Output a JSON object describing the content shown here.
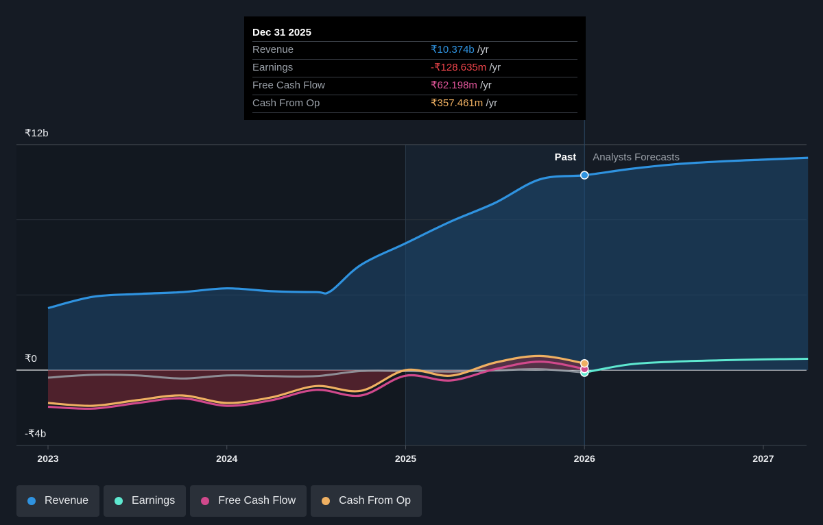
{
  "tooltip": {
    "date": "Dec 31 2025",
    "rows": [
      {
        "label": "Revenue",
        "value": "₹10.374b",
        "unit": "/yr",
        "color": "#2f93e0"
      },
      {
        "label": "Earnings",
        "value": "-₹128.635m",
        "unit": "/yr",
        "color": "#f0454b"
      },
      {
        "label": "Free Cash Flow",
        "value": "₹62.198m",
        "unit": "/yr",
        "color": "#e0559a"
      },
      {
        "label": "Cash From Op",
        "value": "₹357.461m",
        "unit": "/yr",
        "color": "#efb062"
      }
    ]
  },
  "region_labels": {
    "past": "Past",
    "forecast": "Analysts Forecasts"
  },
  "legend": [
    {
      "label": "Revenue",
      "color": "#2f93e0"
    },
    {
      "label": "Earnings",
      "color": "#5ee8d0"
    },
    {
      "label": "Free Cash Flow",
      "color": "#d1498c"
    },
    {
      "label": "Cash From Op",
      "color": "#efb062"
    }
  ],
  "chart_data": {
    "type": "line",
    "y_unit": "₹ billions",
    "y_tick_labels": [
      {
        "value": 12,
        "label": "₹12b"
      },
      {
        "value": 0,
        "label": "₹0"
      },
      {
        "value": -4,
        "label": "-₹4b"
      }
    ],
    "ylim": [
      -4,
      12
    ],
    "xlim": [
      2023,
      2027.25
    ],
    "x_ticks": [
      2023,
      2024,
      2025,
      2026,
      2027
    ],
    "past_forecast_split": 2026,
    "highlight_start": 2025,
    "grid": true,
    "series": [
      {
        "name": "Revenue",
        "color": "#2f93e0",
        "points": [
          [
            2023.0,
            3.3
          ],
          [
            2023.25,
            3.9
          ],
          [
            2023.5,
            4.05
          ],
          [
            2023.75,
            4.15
          ],
          [
            2024.0,
            4.35
          ],
          [
            2024.25,
            4.2
          ],
          [
            2024.5,
            4.15
          ],
          [
            2024.58,
            4.2
          ],
          [
            2024.75,
            5.6
          ],
          [
            2025.0,
            6.75
          ],
          [
            2025.25,
            7.9
          ],
          [
            2025.5,
            8.9
          ],
          [
            2025.75,
            10.15
          ],
          [
            2026.0,
            10.374
          ],
          [
            2026.25,
            10.7
          ],
          [
            2026.5,
            10.95
          ],
          [
            2026.75,
            11.1
          ],
          [
            2027.0,
            11.2
          ],
          [
            2027.25,
            11.3
          ]
        ]
      },
      {
        "name": "Earnings",
        "color": "#5ee8d0",
        "points": [
          [
            2023.0,
            -0.4
          ],
          [
            2023.25,
            -0.25
          ],
          [
            2023.5,
            -0.28
          ],
          [
            2023.75,
            -0.45
          ],
          [
            2024.0,
            -0.28
          ],
          [
            2024.25,
            -0.32
          ],
          [
            2024.5,
            -0.32
          ],
          [
            2024.75,
            -0.05
          ],
          [
            2025.0,
            -0.05
          ],
          [
            2025.25,
            -0.08
          ],
          [
            2025.5,
            -0.02
          ],
          [
            2025.75,
            0.05
          ],
          [
            2026.0,
            -0.129
          ],
          [
            2026.25,
            0.3
          ],
          [
            2026.5,
            0.45
          ],
          [
            2026.75,
            0.52
          ],
          [
            2027.0,
            0.57
          ],
          [
            2027.25,
            0.6
          ]
        ]
      },
      {
        "name": "Free Cash Flow",
        "color": "#d1498c",
        "points": [
          [
            2023.0,
            -1.95
          ],
          [
            2023.25,
            -2.05
          ],
          [
            2023.5,
            -1.75
          ],
          [
            2023.75,
            -1.5
          ],
          [
            2024.0,
            -1.9
          ],
          [
            2024.25,
            -1.6
          ],
          [
            2024.5,
            -1.05
          ],
          [
            2024.75,
            -1.35
          ],
          [
            2025.0,
            -0.3
          ],
          [
            2025.25,
            -0.55
          ],
          [
            2025.5,
            0.05
          ],
          [
            2025.75,
            0.45
          ],
          [
            2026.0,
            0.062
          ]
        ]
      },
      {
        "name": "Cash From Op",
        "color": "#efb062",
        "points": [
          [
            2023.0,
            -1.75
          ],
          [
            2023.25,
            -1.9
          ],
          [
            2023.5,
            -1.6
          ],
          [
            2023.75,
            -1.35
          ],
          [
            2024.0,
            -1.75
          ],
          [
            2024.25,
            -1.45
          ],
          [
            2024.5,
            -0.85
          ],
          [
            2024.75,
            -1.1
          ],
          [
            2025.0,
            0.0
          ],
          [
            2025.25,
            -0.3
          ],
          [
            2025.5,
            0.4
          ],
          [
            2025.75,
            0.75
          ],
          [
            2026.0,
            0.357
          ]
        ]
      }
    ]
  }
}
